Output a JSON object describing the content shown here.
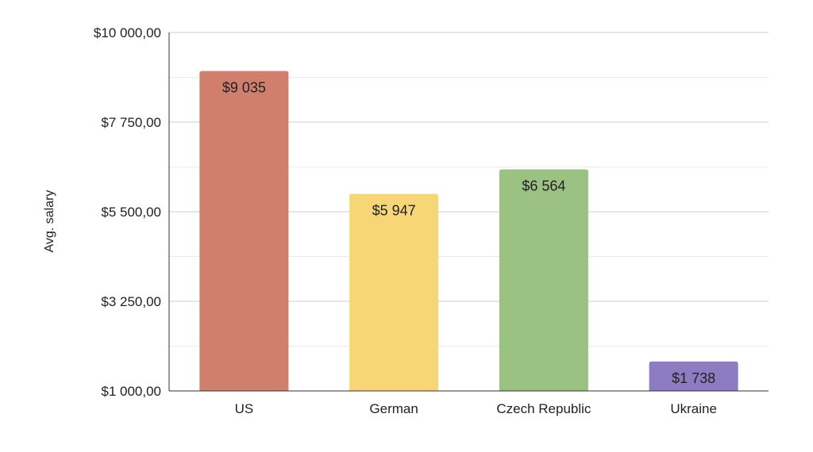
{
  "chart_data": {
    "type": "bar",
    "title": "",
    "xlabel": "",
    "ylabel": "Avg. salary",
    "categories": [
      "US",
      "German",
      "Czech Republic",
      "Ukraine"
    ],
    "values": [
      9035,
      5947,
      6564,
      1738
    ],
    "data_labels": [
      "$9 035",
      "$5 947",
      "$6 564",
      "$1 738"
    ],
    "colors": [
      "#d17f6d",
      "#f6d676",
      "#9cc283",
      "#8d7cc2"
    ],
    "ylim": [
      1000,
      10000
    ],
    "y_ticks": [
      1000,
      3250,
      5500,
      7750,
      10000
    ],
    "y_tick_labels": [
      "$1 000,00",
      "$3 250,00",
      "$5 500,00",
      "$7 750,00",
      "$10 000,00"
    ],
    "grid": true,
    "legend": "none"
  }
}
